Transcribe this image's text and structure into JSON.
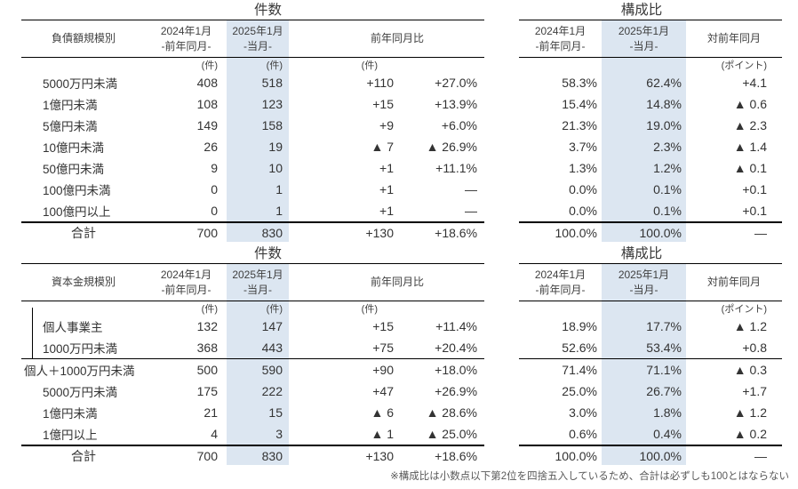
{
  "footnote": "※構成比は小数点以下第2位を四捨五入しているため、合計は必ずしも100とはならない",
  "colors": {
    "highlight": "#dce6f1",
    "line": "#000000",
    "text": "#333333",
    "footnote_gray": "#595959"
  },
  "tables": {
    "debt_count": {
      "title": "件数",
      "header": {
        "category": "負債額規模別",
        "prev": "2024年1月",
        "prev_sub": "-前年同月-",
        "cur": "2025年1月",
        "cur_sub": "-当月-",
        "yoy": "前年同月比"
      },
      "unit": "(件)",
      "rows": [
        {
          "label": "5000万円未満",
          "v2024": "408",
          "v2025": "518",
          "diff": "+110",
          "pct": "+27.0%"
        },
        {
          "label": "1億円未満",
          "v2024": "108",
          "v2025": "123",
          "diff": "+15",
          "pct": "+13.9%"
        },
        {
          "label": "5億円未満",
          "v2024": "149",
          "v2025": "158",
          "diff": "+9",
          "pct": "+6.0%"
        },
        {
          "label": "10億円未満",
          "v2024": "26",
          "v2025": "19",
          "diff": "▲ 7",
          "pct": "▲ 26.9%"
        },
        {
          "label": "50億円未満",
          "v2024": "9",
          "v2025": "10",
          "diff": "+1",
          "pct": "+11.1%"
        },
        {
          "label": "100億円未満",
          "v2024": "0",
          "v2025": "1",
          "diff": "+1",
          "pct": "―"
        },
        {
          "label": "100億円以上",
          "v2024": "0",
          "v2025": "1",
          "diff": "+1",
          "pct": "―"
        }
      ],
      "total": {
        "label": "合計",
        "v2024": "700",
        "v2025": "830",
        "diff": "+130",
        "pct": "+18.6%"
      }
    },
    "debt_ratio": {
      "title": "構成比",
      "header": {
        "prev": "2024年1月",
        "prev_sub": "-前年同月-",
        "cur": "2025年1月",
        "cur_sub": "-当月-",
        "vs": "対前年同月"
      },
      "unit": "(ポイント)",
      "rows": [
        {
          "v2024": "58.3%",
          "v2025": "62.4%",
          "pt": "+4.1"
        },
        {
          "v2024": "15.4%",
          "v2025": "14.8%",
          "pt": "▲ 0.6"
        },
        {
          "v2024": "21.3%",
          "v2025": "19.0%",
          "pt": "▲ 2.3"
        },
        {
          "v2024": "3.7%",
          "v2025": "2.3%",
          "pt": "▲ 1.4"
        },
        {
          "v2024": "1.3%",
          "v2025": "1.2%",
          "pt": "▲ 0.1"
        },
        {
          "v2024": "0.0%",
          "v2025": "0.1%",
          "pt": "+0.1"
        },
        {
          "v2024": "0.0%",
          "v2025": "0.1%",
          "pt": "+0.1"
        }
      ],
      "total": {
        "v2024": "100.0%",
        "v2025": "100.0%",
        "pt": "―"
      }
    },
    "capital_count": {
      "title": "件数",
      "header": {
        "category": "資本金規模別",
        "prev": "2024年1月",
        "prev_sub": "-前年同月-",
        "cur": "2025年1月",
        "cur_sub": "-当月-",
        "yoy": "前年同月比"
      },
      "unit": "(件)",
      "rows": [
        {
          "label": "個人事業主",
          "v2024": "132",
          "v2025": "147",
          "diff": "+15",
          "pct": "+11.4%",
          "grouped": true
        },
        {
          "label": "1000万円未満",
          "v2024": "368",
          "v2025": "443",
          "diff": "+75",
          "pct": "+20.4%",
          "grouped": true
        },
        {
          "label": "個人＋1000万円未満",
          "v2024": "500",
          "v2025": "590",
          "diff": "+90",
          "pct": "+18.0%",
          "indent": false,
          "sep_above": true
        },
        {
          "label": "5000万円未満",
          "v2024": "175",
          "v2025": "222",
          "diff": "+47",
          "pct": "+26.9%"
        },
        {
          "label": "1億円未満",
          "v2024": "21",
          "v2025": "15",
          "diff": "▲ 6",
          "pct": "▲ 28.6%"
        },
        {
          "label": "1億円以上",
          "v2024": "4",
          "v2025": "3",
          "diff": "▲ 1",
          "pct": "▲ 25.0%"
        }
      ],
      "total": {
        "label": "合計",
        "v2024": "700",
        "v2025": "830",
        "diff": "+130",
        "pct": "+18.6%"
      }
    },
    "capital_ratio": {
      "title": "構成比",
      "header": {
        "prev": "2024年1月",
        "prev_sub": "-前年同月-",
        "cur": "2025年1月",
        "cur_sub": "-当月-",
        "vs": "対前年同月"
      },
      "unit": "(ポイント)",
      "rows": [
        {
          "v2024": "18.9%",
          "v2025": "17.7%",
          "pt": "▲ 1.2"
        },
        {
          "v2024": "52.6%",
          "v2025": "53.4%",
          "pt": "+0.8"
        },
        {
          "v2024": "71.4%",
          "v2025": "71.1%",
          "pt": "▲ 0.3",
          "sep_above": true
        },
        {
          "v2024": "25.0%",
          "v2025": "26.7%",
          "pt": "+1.7"
        },
        {
          "v2024": "3.0%",
          "v2025": "1.8%",
          "pt": "▲ 1.2"
        },
        {
          "v2024": "0.6%",
          "v2025": "0.4%",
          "pt": "▲ 0.2"
        }
      ],
      "total": {
        "v2024": "100.0%",
        "v2025": "100.0%",
        "pt": "―"
      }
    }
  }
}
